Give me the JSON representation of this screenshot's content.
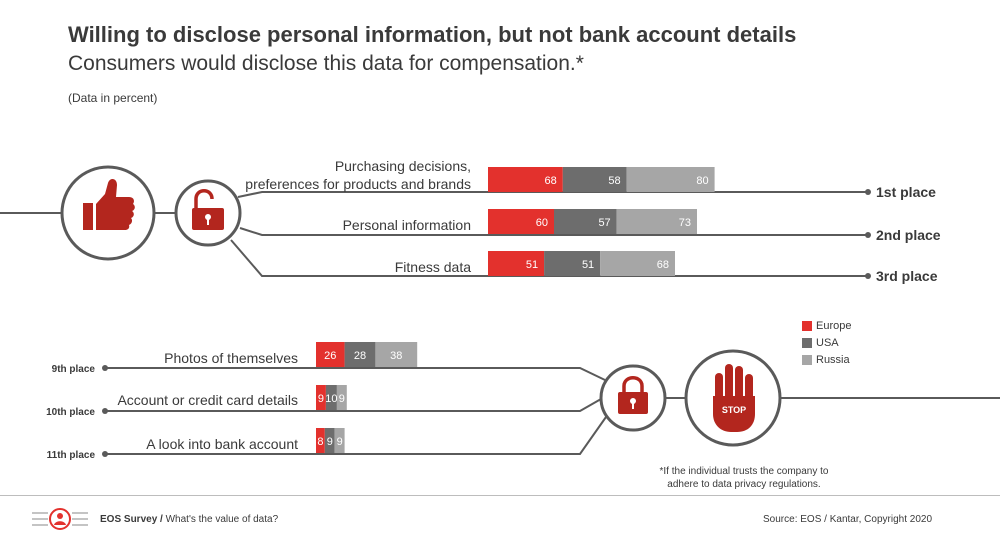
{
  "header": {
    "title": "Willing to disclose personal information, but not bank account details",
    "subtitle": "Consumers would disclose this data for compensation.*",
    "note": "(Data in percent)"
  },
  "legend": [
    {
      "label": "Europe",
      "color": "#e3312d"
    },
    {
      "label": "USA",
      "color": "#6d6d6d"
    },
    {
      "label": "Russia",
      "color": "#a6a6a6"
    }
  ],
  "icons": {
    "top_left": "thumbs-up-icon",
    "top_right": "unlocked-padlock-icon",
    "bottom_left": "locked-padlock-icon",
    "bottom_right": "stop-hand-icon",
    "stop_text": "STOP"
  },
  "chart_data": {
    "type": "bar",
    "stacked": true,
    "top": [
      {
        "label_lines": [
          "Purchasing decisions,",
          "preferences for products and brands"
        ],
        "rank": "1st place",
        "values": [
          68,
          58,
          80
        ]
      },
      {
        "label_lines": [
          "Personal information"
        ],
        "rank": "2nd place",
        "values": [
          60,
          57,
          73
        ]
      },
      {
        "label_lines": [
          "Fitness data"
        ],
        "rank": "3rd place",
        "values": [
          51,
          51,
          68
        ]
      }
    ],
    "bottom": [
      {
        "label_lines": [
          "Photos of themselves"
        ],
        "rank": "9th place",
        "values": [
          26,
          28,
          38
        ]
      },
      {
        "label_lines": [
          "Account or credit card details"
        ],
        "rank": "10th place",
        "values": [
          9,
          10,
          9
        ]
      },
      {
        "label_lines": [
          "A look into bank account"
        ],
        "rank": "11th place",
        "values": [
          8,
          9,
          9
        ]
      }
    ],
    "series": [
      {
        "name": "Europe",
        "color": "#e3312d"
      },
      {
        "name": "USA",
        "color": "#6d6d6d"
      },
      {
        "name": "Russia",
        "color": "#a6a6a6"
      }
    ]
  },
  "footnote": "*If the individual trusts the company to adhere to data privacy regulations.",
  "footer": {
    "brand": "EOS Survey",
    "separator": " / ",
    "topic": "What's the value of data?",
    "source": "Source: EOS / Kantar, Copyright 2020"
  }
}
